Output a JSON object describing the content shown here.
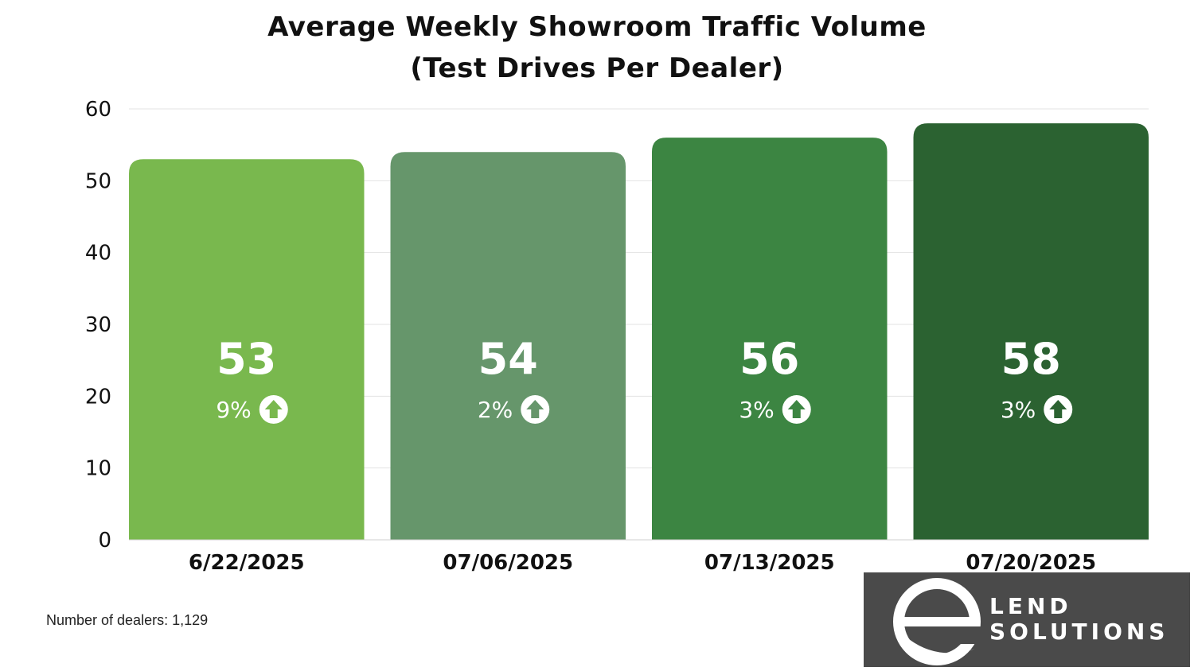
{
  "chart_data": {
    "type": "bar",
    "title_line1": "Average Weekly Showroom Traffic Volume",
    "title_line2": "(Test Drives Per Dealer)",
    "xlabel": "",
    "ylabel": "",
    "categories": [
      "6/22/2025",
      "07/06/2025",
      "07/13/2025",
      "07/20/2025"
    ],
    "values": [
      53,
      54,
      56,
      58
    ],
    "value_labels": [
      "53",
      "54",
      "56",
      "58"
    ],
    "changes": [
      "9%",
      "2%",
      "3%",
      "3%"
    ],
    "change_icon": "up-arrow-circle-icon",
    "bar_colors": [
      "#79b84e",
      "#66966b",
      "#3c8542",
      "#2b6231"
    ],
    "ylim": [
      0,
      60
    ],
    "yticks": [
      0,
      10,
      20,
      30,
      40,
      50,
      60
    ],
    "grid": true,
    "legend": "none"
  },
  "footnote": "Number of dealers: 1,129",
  "logo": {
    "line1": "LEND",
    "line2": "SOLUTIONS",
    "background": "#4a4a4a",
    "icon": "e-swoosh-logo-icon"
  }
}
